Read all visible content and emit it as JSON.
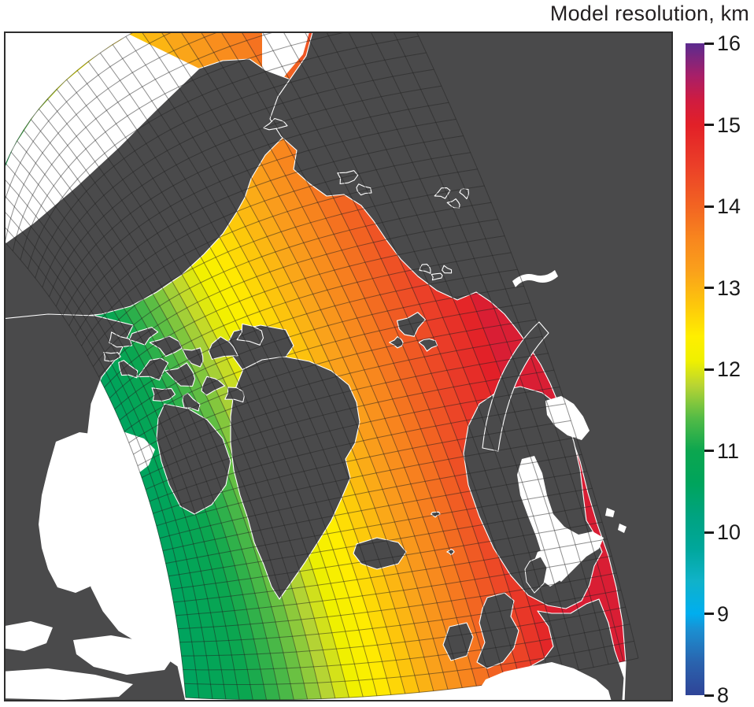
{
  "title": "Model resolution, km",
  "colorbar": {
    "ticks": [
      16,
      15,
      14,
      13,
      12,
      11,
      10,
      9,
      8
    ],
    "min": 8,
    "max": 16,
    "colormap": [
      [
        8.0,
        "#2f4497"
      ],
      [
        8.4,
        "#2a63ae"
      ],
      [
        8.8,
        "#1b8fd1"
      ],
      [
        9.0,
        "#00aeef"
      ],
      [
        9.4,
        "#10b2c9"
      ],
      [
        9.8,
        "#00a79b"
      ],
      [
        10.2,
        "#00a380"
      ],
      [
        10.6,
        "#00a45c"
      ],
      [
        11.0,
        "#0ca64f"
      ],
      [
        11.4,
        "#53bb46"
      ],
      [
        11.8,
        "#b8d433"
      ],
      [
        12.1,
        "#eff000"
      ],
      [
        12.4,
        "#ffef00"
      ],
      [
        12.8,
        "#fdc60c"
      ],
      [
        13.2,
        "#faa11b"
      ],
      [
        13.6,
        "#f8861e"
      ],
      [
        14.0,
        "#f26422"
      ],
      [
        14.5,
        "#eb3f28"
      ],
      [
        15.0,
        "#e22028"
      ],
      [
        15.3,
        "#cf1c40"
      ],
      [
        15.6,
        "#a81f68"
      ],
      [
        16.0,
        "#5b2b8f"
      ]
    ]
  },
  "map": {
    "grid_columns": 32,
    "grid_rows": 42,
    "value_at_left_edge": 10.55,
    "value_span": 4.5,
    "value_clamp_max": 15.15,
    "description_regions": "Arctic Ocean model domain; resolution grows from ~10.6 km (Canadian Archipelago side) to ~15.1 km (Kara/Barents side)"
  },
  "colors": {
    "land": "#4a4a4b",
    "ocean_outside_domain": "#ffffff",
    "grid_line": "#222222",
    "map_border": "#2e2e2e",
    "text": "#231f20",
    "page_background": "#ffffff"
  }
}
